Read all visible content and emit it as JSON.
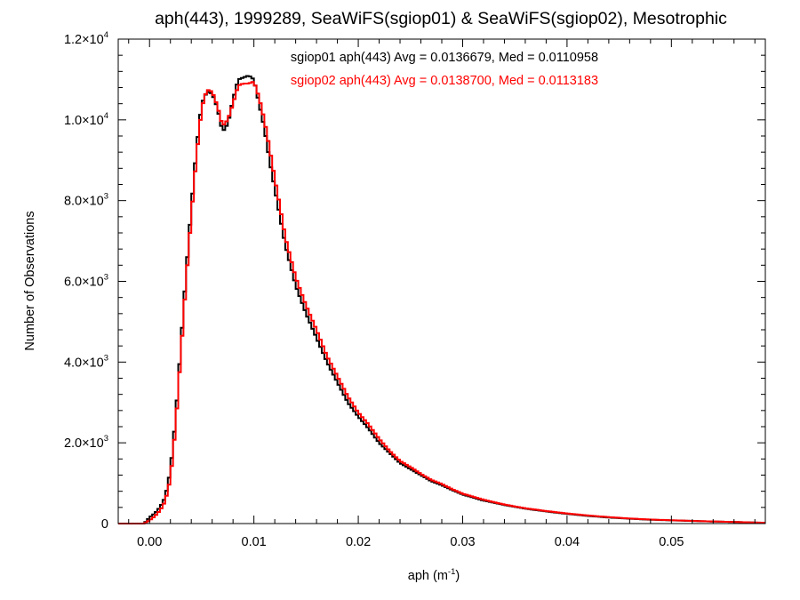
{
  "chart_data": {
    "type": "line",
    "title": "aph(443), 1999289, SeaWiFS(sgiop01) & SeaWiFS(sgiop02), Mesotrophic",
    "xlabel": {
      "base": "aph (m",
      "sup": "-1",
      "end": ")"
    },
    "ylabel": "Number of Observations",
    "xlim": [
      -0.003,
      0.059
    ],
    "ylim": [
      0,
      12000
    ],
    "grid": false,
    "x_ticks": [
      {
        "value": 0.0,
        "label": "0.00"
      },
      {
        "value": 0.01,
        "label": "0.01"
      },
      {
        "value": 0.02,
        "label": "0.02"
      },
      {
        "value": 0.03,
        "label": "0.03"
      },
      {
        "value": 0.04,
        "label": "0.04"
      },
      {
        "value": 0.05,
        "label": "0.05"
      }
    ],
    "y_ticks": [
      {
        "value": 0,
        "mant": "0",
        "exp": ""
      },
      {
        "value": 2000,
        "mant": "2.0×10",
        "exp": "3"
      },
      {
        "value": 4000,
        "mant": "4.0×10",
        "exp": "3"
      },
      {
        "value": 6000,
        "mant": "6.0×10",
        "exp": "3"
      },
      {
        "value": 8000,
        "mant": "8.0×10",
        "exp": "3"
      },
      {
        "value": 10000,
        "mant": "1.0×10",
        "exp": "4"
      },
      {
        "value": 12000,
        "mant": "1.2×10",
        "exp": "4"
      }
    ],
    "annotations": [
      {
        "text": "sgiop01 aph(443) Avg = 0.0136679, Med = 0.0110958",
        "color": "#000000"
      },
      {
        "text": "sgiop02 aph(443) Avg = 0.0138700, Med = 0.0113183",
        "color": "#ff0000"
      }
    ],
    "series": [
      {
        "color": "#000000",
        "x": [
          -0.003,
          -0.0005,
          0.0,
          0.0005,
          0.001,
          0.0015,
          0.002,
          0.0025,
          0.003,
          0.0035,
          0.004,
          0.0045,
          0.005,
          0.0055,
          0.006,
          0.0065,
          0.007,
          0.0075,
          0.008,
          0.0085,
          0.009,
          0.0095,
          0.01,
          0.0105,
          0.011,
          0.0115,
          0.012,
          0.0125,
          0.013,
          0.014,
          0.015,
          0.016,
          0.017,
          0.018,
          0.019,
          0.02,
          0.021,
          0.022,
          0.023,
          0.024,
          0.025,
          0.026,
          0.027,
          0.028,
          0.029,
          0.03,
          0.032,
          0.034,
          0.036,
          0.038,
          0.04,
          0.042,
          0.044,
          0.046,
          0.048,
          0.05,
          0.052,
          0.054,
          0.056,
          0.058,
          0.059
        ],
        "values": [
          0,
          0,
          150,
          250,
          400,
          650,
          1300,
          2600,
          4400,
          6200,
          7800,
          9300,
          10400,
          10700,
          10650,
          10300,
          9700,
          9900,
          10500,
          11000,
          11050,
          11100,
          11000,
          10400,
          9800,
          9000,
          8300,
          7600,
          6900,
          5900,
          5200,
          4600,
          4000,
          3500,
          3000,
          2650,
          2350,
          2000,
          1750,
          1500,
          1350,
          1200,
          1050,
          950,
          830,
          720,
          570,
          460,
          370,
          300,
          240,
          190,
          150,
          120,
          95,
          80,
          65,
          50,
          40,
          25,
          20
        ]
      },
      {
        "color": "#ff0000",
        "x": [
          -0.003,
          -0.0005,
          0.0,
          0.0005,
          0.001,
          0.0015,
          0.002,
          0.0025,
          0.003,
          0.0035,
          0.004,
          0.0045,
          0.005,
          0.0055,
          0.006,
          0.0065,
          0.007,
          0.0075,
          0.008,
          0.0085,
          0.009,
          0.0095,
          0.01,
          0.0105,
          0.011,
          0.0115,
          0.012,
          0.0125,
          0.013,
          0.014,
          0.015,
          0.016,
          0.017,
          0.018,
          0.019,
          0.02,
          0.021,
          0.022,
          0.023,
          0.024,
          0.025,
          0.026,
          0.027,
          0.028,
          0.029,
          0.03,
          0.032,
          0.034,
          0.036,
          0.038,
          0.04,
          0.042,
          0.044,
          0.046,
          0.048,
          0.05,
          0.052,
          0.054,
          0.056,
          0.058,
          0.059
        ],
        "values": [
          0,
          0,
          80,
          180,
          320,
          550,
          1100,
          2400,
          4200,
          6000,
          7600,
          9100,
          10300,
          10750,
          10700,
          10350,
          9850,
          10000,
          10400,
          10850,
          10900,
          10900,
          10950,
          10550,
          10000,
          9300,
          8550,
          7850,
          7100,
          6100,
          5400,
          4800,
          4150,
          3650,
          3150,
          2750,
          2450,
          2100,
          1800,
          1550,
          1400,
          1230,
          1080,
          980,
          850,
          740,
          590,
          470,
          380,
          310,
          250,
          200,
          160,
          125,
          100,
          82,
          66,
          52,
          40,
          26,
          20
        ]
      }
    ]
  }
}
